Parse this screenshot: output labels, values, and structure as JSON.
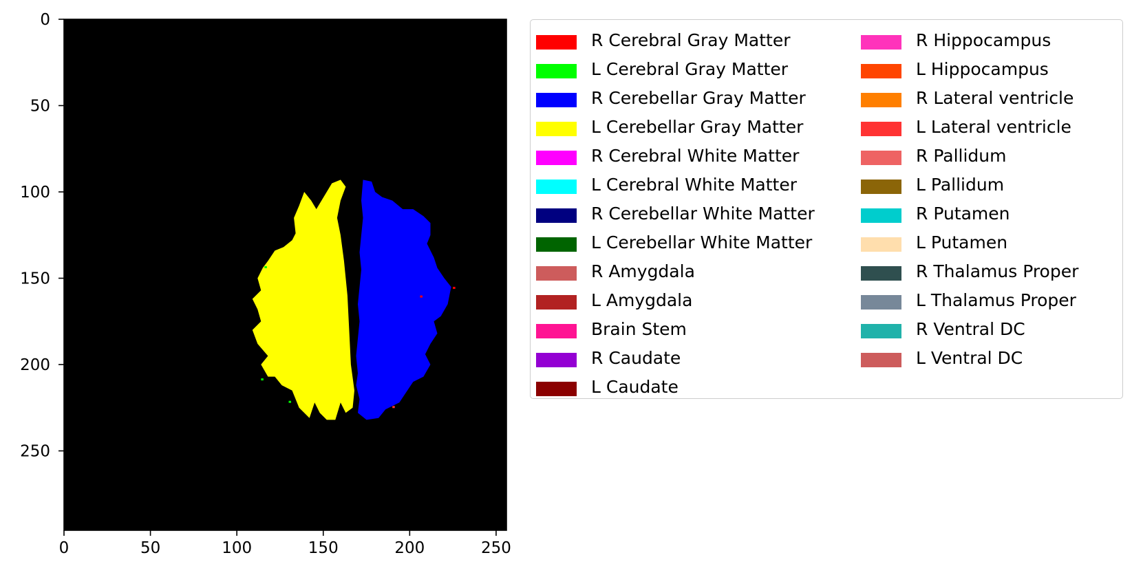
{
  "chart_data": {
    "type": "heatmap",
    "title": "",
    "xlabel": "",
    "ylabel": "",
    "xlim": [
      0,
      256
    ],
    "ylim": [
      296,
      0
    ],
    "x_ticks": [
      0,
      50,
      100,
      150,
      200,
      250
    ],
    "y_ticks": [
      0,
      50,
      100,
      150,
      200,
      250
    ],
    "x_tick_labels": [
      "0",
      "50",
      "100",
      "150",
      "200",
      "250"
    ],
    "y_tick_labels": [
      "0",
      "50",
      "100",
      "150",
      "200",
      "250"
    ],
    "grid": false,
    "background_color": "#000000",
    "regions": [
      {
        "name": "L Cerebellar Gray Matter",
        "color": "#ffff00",
        "outline": [
          [
            160,
            93
          ],
          [
            163,
            97
          ],
          [
            160,
            105
          ],
          [
            158,
            115
          ],
          [
            160,
            125
          ],
          [
            162,
            140
          ],
          [
            164,
            160
          ],
          [
            165,
            180
          ],
          [
            166,
            200
          ],
          [
            168,
            215
          ],
          [
            167,
            225
          ],
          [
            163,
            228
          ],
          [
            160,
            222
          ],
          [
            157,
            232
          ],
          [
            152,
            232
          ],
          [
            148,
            228
          ],
          [
            145,
            222
          ],
          [
            142,
            231
          ],
          [
            136,
            225
          ],
          [
            132,
            215
          ],
          [
            126,
            212
          ],
          [
            122,
            207
          ],
          [
            118,
            207
          ],
          [
            114,
            200
          ],
          [
            118,
            195
          ],
          [
            112,
            188
          ],
          [
            109,
            180
          ],
          [
            114,
            175
          ],
          [
            112,
            168
          ],
          [
            109,
            162
          ],
          [
            114,
            157
          ],
          [
            112,
            150
          ],
          [
            115,
            144
          ],
          [
            118,
            140
          ],
          [
            122,
            134
          ],
          [
            127,
            132
          ],
          [
            132,
            128
          ],
          [
            134,
            124
          ],
          [
            133,
            115
          ],
          [
            136,
            108
          ],
          [
            139,
            100
          ],
          [
            143,
            105
          ],
          [
            146,
            110
          ],
          [
            149,
            105
          ],
          [
            152,
            100
          ],
          [
            155,
            95
          ]
        ]
      },
      {
        "name": "R Cerebellar Gray Matter",
        "color": "#0000ff",
        "outline": [
          [
            173,
            93
          ],
          [
            178,
            94
          ],
          [
            180,
            100
          ],
          [
            184,
            103
          ],
          [
            190,
            105
          ],
          [
            196,
            110
          ],
          [
            202,
            110
          ],
          [
            208,
            114
          ],
          [
            212,
            118
          ],
          [
            212,
            125
          ],
          [
            210,
            130
          ],
          [
            214,
            138
          ],
          [
            216,
            144
          ],
          [
            220,
            150
          ],
          [
            224,
            155
          ],
          [
            222,
            165
          ],
          [
            218,
            172
          ],
          [
            214,
            175
          ],
          [
            216,
            182
          ],
          [
            212,
            188
          ],
          [
            209,
            194
          ],
          [
            212,
            200
          ],
          [
            208,
            207
          ],
          [
            202,
            210
          ],
          [
            198,
            216
          ],
          [
            194,
            222
          ],
          [
            190,
            224
          ],
          [
            186,
            226
          ],
          [
            182,
            231
          ],
          [
            175,
            232
          ],
          [
            170,
            228
          ],
          [
            171,
            220
          ],
          [
            169,
            212
          ],
          [
            170,
            205
          ],
          [
            169,
            195
          ],
          [
            170,
            185
          ],
          [
            171,
            175
          ],
          [
            170,
            165
          ],
          [
            171,
            155
          ],
          [
            172,
            145
          ],
          [
            171,
            135
          ],
          [
            172,
            125
          ],
          [
            173,
            115
          ],
          [
            172,
            105
          ]
        ]
      },
      {
        "name": "L Cerebral Gray Matter",
        "color": "#00ff00",
        "pixels": [
          [
            116,
            143
          ],
          [
            114,
            208
          ],
          [
            130,
            221
          ]
        ]
      },
      {
        "name": "R Cerebral Gray Matter",
        "color": "#ff0000",
        "pixels": [
          [
            206,
            160
          ],
          [
            225,
            155
          ]
        ]
      },
      {
        "name": "L Lateral ventricle",
        "color": "#ff3333",
        "pixels": [
          [
            190,
            224
          ]
        ]
      }
    ],
    "legend": {
      "location": "upper-left outside plot",
      "columns": 2,
      "entries": [
        {
          "label": "R Cerebral Gray Matter",
          "color": "#ff0000"
        },
        {
          "label": "L Cerebral Gray Matter",
          "color": "#00ff00"
        },
        {
          "label": "R Cerebellar Gray Matter",
          "color": "#0000ff"
        },
        {
          "label": "L Cerebellar Gray Matter",
          "color": "#ffff00"
        },
        {
          "label": "R Cerebral White Matter",
          "color": "#ff00ff"
        },
        {
          "label": "L Cerebral White Matter",
          "color": "#00ffff"
        },
        {
          "label": "R Cerebellar White Matter",
          "color": "#000080"
        },
        {
          "label": "L Cerebellar White Matter",
          "color": "#006400"
        },
        {
          "label": "R Amygdala",
          "color": "#cd5c5c"
        },
        {
          "label": "L Amygdala",
          "color": "#b22222"
        },
        {
          "label": "Brain Stem",
          "color": "#ff1493"
        },
        {
          "label": "R Caudate",
          "color": "#9400d3"
        },
        {
          "label": "L Caudate",
          "color": "#8b0000"
        },
        {
          "label": "R Hippocampus",
          "color": "#ff33bb"
        },
        {
          "label": "L Hippocampus",
          "color": "#ff4500"
        },
        {
          "label": "R Lateral ventricle",
          "color": "#ff7f00"
        },
        {
          "label": "L Lateral ventricle",
          "color": "#ff3333"
        },
        {
          "label": "R Pallidum",
          "color": "#ee6363"
        },
        {
          "label": "L Pallidum",
          "color": "#8b6508"
        },
        {
          "label": "R Putamen",
          "color": "#00cdcd"
        },
        {
          "label": "L Putamen",
          "color": "#ffdead"
        },
        {
          "label": "R Thalamus Proper",
          "color": "#2f4f4f"
        },
        {
          "label": "L Thalamus Proper",
          "color": "#778899"
        },
        {
          "label": "R Ventral DC",
          "color": "#20b2aa"
        },
        {
          "label": "L Ventral DC",
          "color": "#cd5c5c"
        }
      ]
    }
  }
}
